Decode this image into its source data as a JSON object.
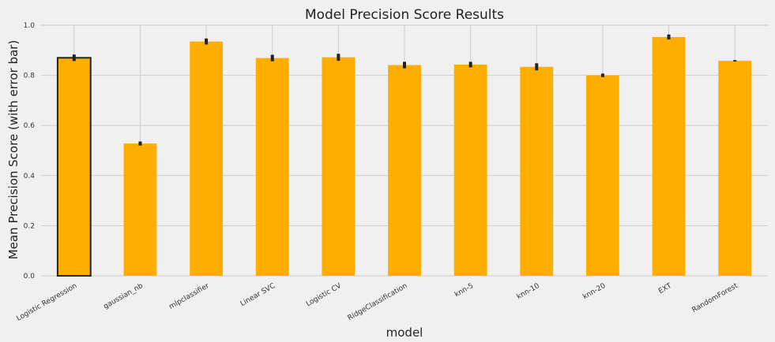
{
  "chart_data": {
    "type": "bar",
    "title": "Model Precision Score Results",
    "xlabel": "model",
    "ylabel": "Mean Precision Score (with error bar)",
    "categories": [
      "Logistic Regression",
      "gaussian_nb",
      "mlpclassifier",
      "Linear SVC",
      "Logistic CV",
      "RidgeClassification",
      "knn-5",
      "knn-10",
      "knn-20",
      "EXT",
      "RandomForest"
    ],
    "series": [
      {
        "values": [
          0.87,
          0.528,
          0.935,
          0.869,
          0.872,
          0.841,
          0.843,
          0.834,
          0.8,
          0.953,
          0.858
        ],
        "error": [
          0.013,
          0.008,
          0.012,
          0.013,
          0.014,
          0.013,
          0.011,
          0.014,
          0.007,
          0.01,
          0.003
        ],
        "highlight": [
          true,
          false,
          false,
          false,
          false,
          false,
          false,
          false,
          false,
          false,
          false
        ]
      }
    ],
    "ylim": [
      0.0,
      1.0
    ],
    "yticks": [
      "0.0",
      "0.2",
      "0.4",
      "0.6",
      "0.8",
      "1.0"
    ],
    "grid": true,
    "colors": {
      "bar": "#ffae00",
      "error_bar": "#222222",
      "highlight_edge": "#222222",
      "grid": "#cbcbcb",
      "background": "#f0f0f0"
    }
  }
}
